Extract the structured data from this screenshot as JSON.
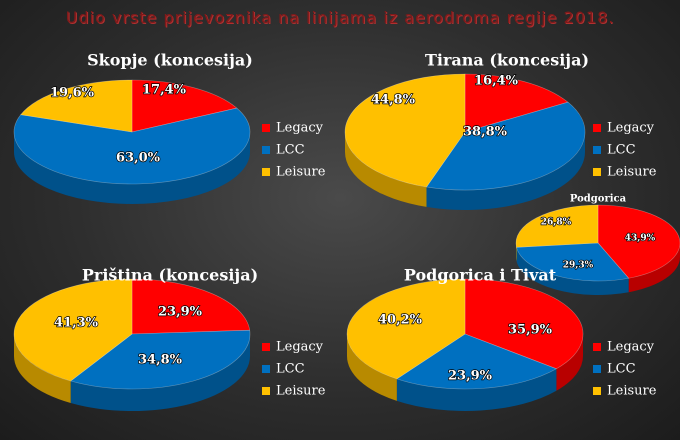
{
  "page": {
    "title": "Udio vrste prijevoznika na linijama iz aerodroma regije 2018."
  },
  "colors": {
    "Legacy": "#ff0000",
    "LCC": "#0070c0",
    "Leisure": "#ffc000"
  },
  "chart_data": [
    {
      "type": "pie",
      "title": "Skopje (koncesija)",
      "categories": [
        "Legacy",
        "LCC",
        "Leisure"
      ],
      "values": [
        17.4,
        63.0,
        19.6
      ],
      "labels": [
        "17,4%",
        "63,0%",
        "19,6%"
      ],
      "legend": [
        "Legacy",
        "LCC",
        "Leisure"
      ]
    },
    {
      "type": "pie",
      "title": "Tirana (koncesija)",
      "categories": [
        "Legacy",
        "LCC",
        "Leisure"
      ],
      "values": [
        16.4,
        38.8,
        44.8
      ],
      "labels": [
        "16,4%",
        "38,8%",
        "44,8%"
      ],
      "legend": [
        "Legacy",
        "LCC",
        "Leisure"
      ]
    },
    {
      "type": "pie",
      "title": "Podgorica",
      "categories": [
        "Legacy",
        "LCC",
        "Leisure"
      ],
      "values": [
        43.9,
        29.3,
        26.8
      ],
      "labels": [
        "43,9%",
        "29,3%",
        "26,8%"
      ],
      "legend": []
    },
    {
      "type": "pie",
      "title": "Priština (koncesija)",
      "categories": [
        "Legacy",
        "LCC",
        "Leisure"
      ],
      "values": [
        23.9,
        34.8,
        41.3
      ],
      "labels": [
        "23,9%",
        "34,8%",
        "41,3%"
      ],
      "legend": [
        "Legacy",
        "LCC",
        "Leisure"
      ]
    },
    {
      "type": "pie",
      "title": "Podgorica i Tivat",
      "categories": [
        "Legacy",
        "LCC",
        "Leisure"
      ],
      "values": [
        35.9,
        23.9,
        40.2
      ],
      "labels": [
        "35,9%",
        "23,9%",
        "40,2%"
      ],
      "legend": [
        "Legacy",
        "LCC",
        "Leisure"
      ]
    }
  ]
}
